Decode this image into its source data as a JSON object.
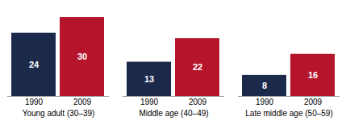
{
  "chart_data": {
    "type": "bar",
    "categories": [
      "Young adult (30–39)",
      "Middle age (40–49)",
      "Late middle age (50–59)"
    ],
    "series": [
      {
        "name": "1990",
        "color": "#1b2a4a",
        "values": [
          24,
          13,
          8
        ]
      },
      {
        "name": "2009",
        "color": "#b5152b",
        "values": [
          30,
          22,
          16
        ]
      }
    ],
    "ylim": [
      0,
      34
    ],
    "data_labels": true,
    "tick_labels": "x",
    "grid": false
  }
}
